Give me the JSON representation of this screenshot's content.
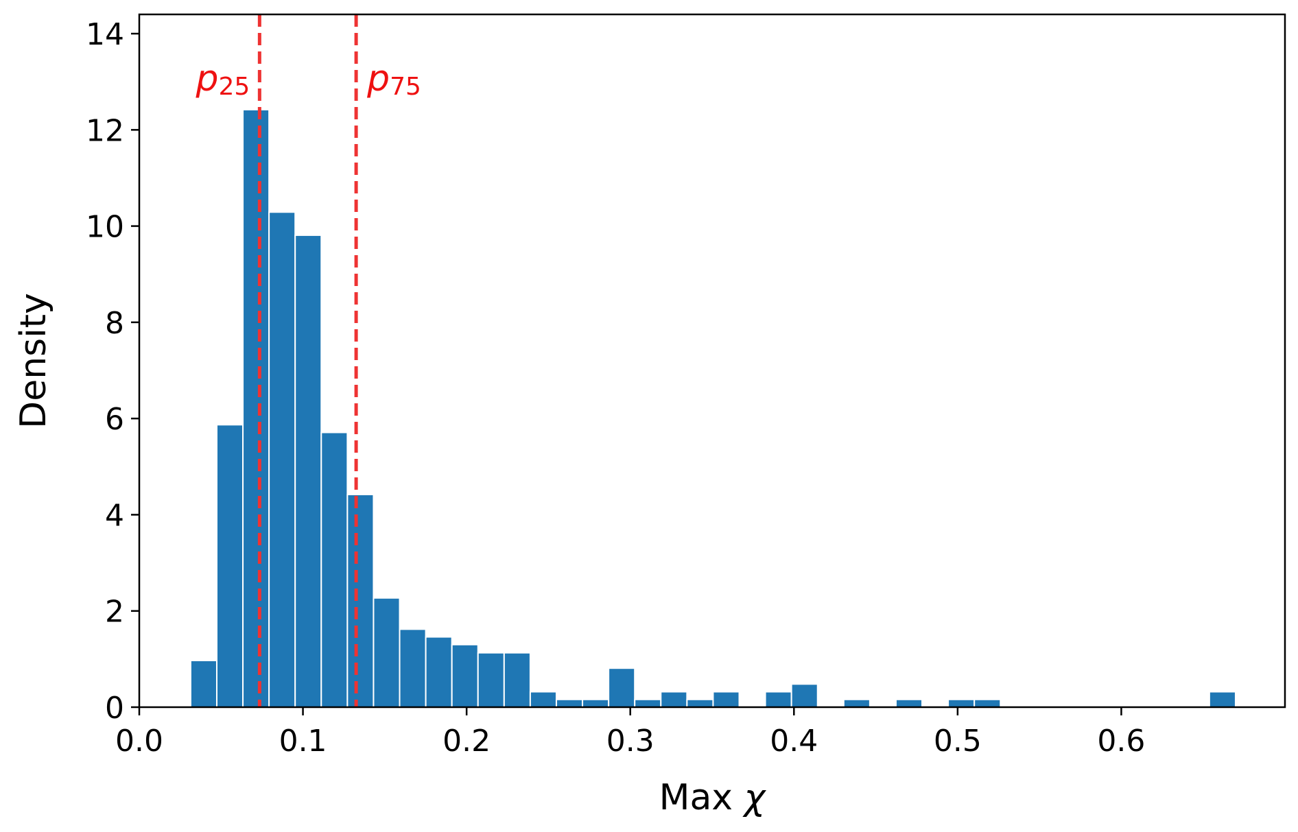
{
  "chart_data": {
    "type": "bar",
    "subtype": "histogram",
    "xlabel_prefix": "Max ",
    "xlabel_symbol": "χ",
    "ylabel": "Density",
    "xlim": [
      0.0,
      0.7
    ],
    "ylim": [
      0,
      14.4
    ],
    "xticks": [
      0.0,
      0.1,
      0.2,
      0.3,
      0.4,
      0.5,
      0.6
    ],
    "xtick_labels": [
      "0.0",
      "0.1",
      "0.2",
      "0.3",
      "0.4",
      "0.5",
      "0.6"
    ],
    "yticks": [
      0,
      2,
      4,
      6,
      8,
      10,
      12,
      14
    ],
    "ytick_labels": [
      "0",
      "2",
      "4",
      "6",
      "8",
      "10",
      "12",
      "14"
    ],
    "bar_color": "#1f77b4",
    "bin_width": 0.01596,
    "bin_start": 0.0314,
    "values": [
      0.97,
      5.87,
      12.42,
      10.29,
      9.81,
      5.71,
      4.42,
      2.27,
      1.62,
      1.46,
      1.3,
      1.13,
      1.13,
      0.32,
      0.16,
      0.16,
      0.81,
      0.16,
      0.32,
      0.16,
      0.32,
      0,
      0.32,
      0.48,
      0,
      0.16,
      0,
      0.16,
      0,
      0.16,
      0.16,
      0,
      0,
      0,
      0,
      0,
      0,
      0,
      0,
      0.32
    ],
    "reference_lines": [
      {
        "x": 0.0735,
        "label_base": "p",
        "label_sub": "25",
        "color": "#ee3333",
        "style": "dashed",
        "label_side": "left"
      },
      {
        "x": 0.1325,
        "label_base": "p",
        "label_sub": "75",
        "color": "#ee3333",
        "style": "dashed",
        "label_side": "right"
      }
    ],
    "grid": false,
    "legend": "none"
  }
}
